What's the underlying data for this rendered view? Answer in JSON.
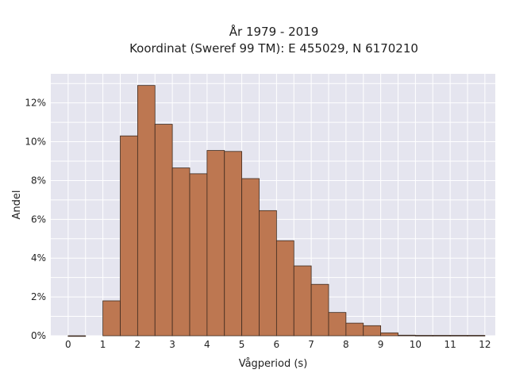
{
  "chart_data": {
    "type": "bar",
    "title_line1": "År 1979 - 2019",
    "title_line2": "Koordinat (Sweref 99 TM): E 455029, N 6170210",
    "xlabel": "Vågperiod (s)",
    "ylabel": "Andel",
    "xlim": [
      -0.5,
      12.3
    ],
    "ylim": [
      0,
      13.5
    ],
    "x_ticks": [
      0,
      1,
      2,
      3,
      4,
      5,
      6,
      7,
      8,
      9,
      10,
      11,
      12
    ],
    "y_ticks": [
      0,
      2,
      4,
      6,
      8,
      10,
      12
    ],
    "y_tick_labels": [
      "0%",
      "2%",
      "4%",
      "6%",
      "8%",
      "10%",
      "12%"
    ],
    "bin_width": 0.5,
    "bins": [
      {
        "start": 0.0,
        "value": 0.0
      },
      {
        "start": 1.0,
        "value": 1.8
      },
      {
        "start": 1.5,
        "value": 10.3
      },
      {
        "start": 2.0,
        "value": 12.9
      },
      {
        "start": 2.5,
        "value": 10.9
      },
      {
        "start": 3.0,
        "value": 8.65
      },
      {
        "start": 3.5,
        "value": 8.35
      },
      {
        "start": 4.0,
        "value": 9.55
      },
      {
        "start": 4.5,
        "value": 9.5
      },
      {
        "start": 5.0,
        "value": 8.1
      },
      {
        "start": 5.5,
        "value": 6.45
      },
      {
        "start": 6.0,
        "value": 4.9
      },
      {
        "start": 6.5,
        "value": 3.6
      },
      {
        "start": 7.0,
        "value": 2.65
      },
      {
        "start": 7.5,
        "value": 1.2
      },
      {
        "start": 8.0,
        "value": 0.65
      },
      {
        "start": 8.5,
        "value": 0.52
      },
      {
        "start": 9.0,
        "value": 0.15
      },
      {
        "start": 9.5,
        "value": 0.03
      },
      {
        "start": 10.0,
        "value": 0.02
      },
      {
        "start": 10.5,
        "value": 0.02
      },
      {
        "start": 11.0,
        "value": 0.02
      },
      {
        "start": 11.5,
        "value": 0.02
      }
    ],
    "grid": true,
    "legend": "none",
    "colors": {
      "bar": "#bd7751",
      "edge": "#3d2a1f",
      "plot_bg": "#e5e5ef",
      "grid": "#ffffff"
    }
  }
}
